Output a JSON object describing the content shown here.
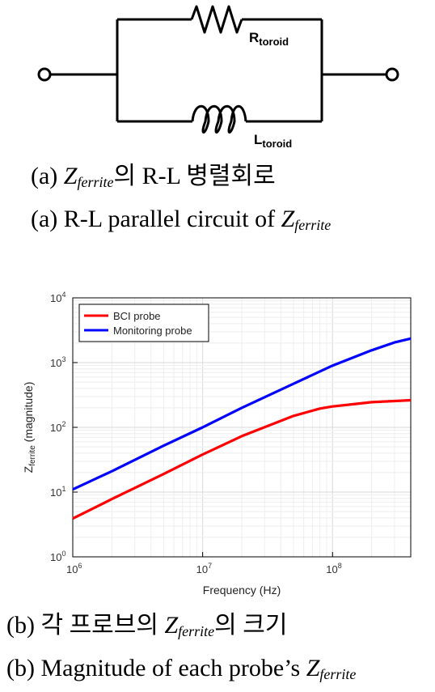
{
  "circuit": {
    "r_label": "R",
    "r_sub": "toroid",
    "l_label": "L",
    "l_sub": "toroid"
  },
  "captions": {
    "a_ko_prefix": "(a) ",
    "a_ko_z": "Z",
    "a_ko_sub": "ferrite",
    "a_ko_rest": "의 R-L 병렬회로",
    "a_en_prefix": "(a) R-L parallel circuit of ",
    "a_en_z": "Z",
    "a_en_sub": "ferrite",
    "b_ko_prefix": "(b) 각 프로브의 ",
    "b_ko_z": "Z",
    "b_ko_sub": "ferrite",
    "b_ko_rest": "의 크기",
    "b_en_prefix": "(b) Magnitude of each probe’s ",
    "b_en_z": "Z",
    "b_en_sub": "ferrite"
  },
  "chart_data": {
    "type": "line",
    "xscale": "log",
    "yscale": "log",
    "xlim": [
      1000000,
      400000000
    ],
    "ylim": [
      1,
      10000
    ],
    "xlabel": "Frequency (Hz)",
    "ylabel_main": "Z",
    "ylabel_sub": "ferrite",
    "ylabel_rest": " (magnitude)",
    "x_ticks": [
      1000000,
      10000000,
      100000000
    ],
    "x_tick_base": "10",
    "x_tick_exps": [
      "6",
      "7",
      "8"
    ],
    "y_ticks": [
      1,
      10,
      100,
      1000,
      10000
    ],
    "y_tick_base": "10",
    "y_tick_exps": [
      "0",
      "1",
      "2",
      "3",
      "4"
    ],
    "grid": true,
    "legend_position": "top-left",
    "series": [
      {
        "name": "BCI probe",
        "color": "#ff0000",
        "x": [
          1000000,
          2000000,
          5000000,
          10000000,
          20000000,
          50000000,
          80000000,
          100000000,
          150000000,
          200000000,
          300000000,
          400000000
        ],
        "y": [
          3.9,
          7.8,
          19,
          38,
          73,
          150,
          195,
          210,
          230,
          245,
          255,
          262
        ]
      },
      {
        "name": "Monitoring probe",
        "color": "#0000ff",
        "x": [
          1000000,
          2000000,
          5000000,
          10000000,
          20000000,
          50000000,
          100000000,
          200000000,
          300000000,
          400000000
        ],
        "y": [
          11,
          21,
          52,
          100,
          200,
          470,
          900,
          1550,
          2050,
          2350
        ]
      }
    ]
  }
}
